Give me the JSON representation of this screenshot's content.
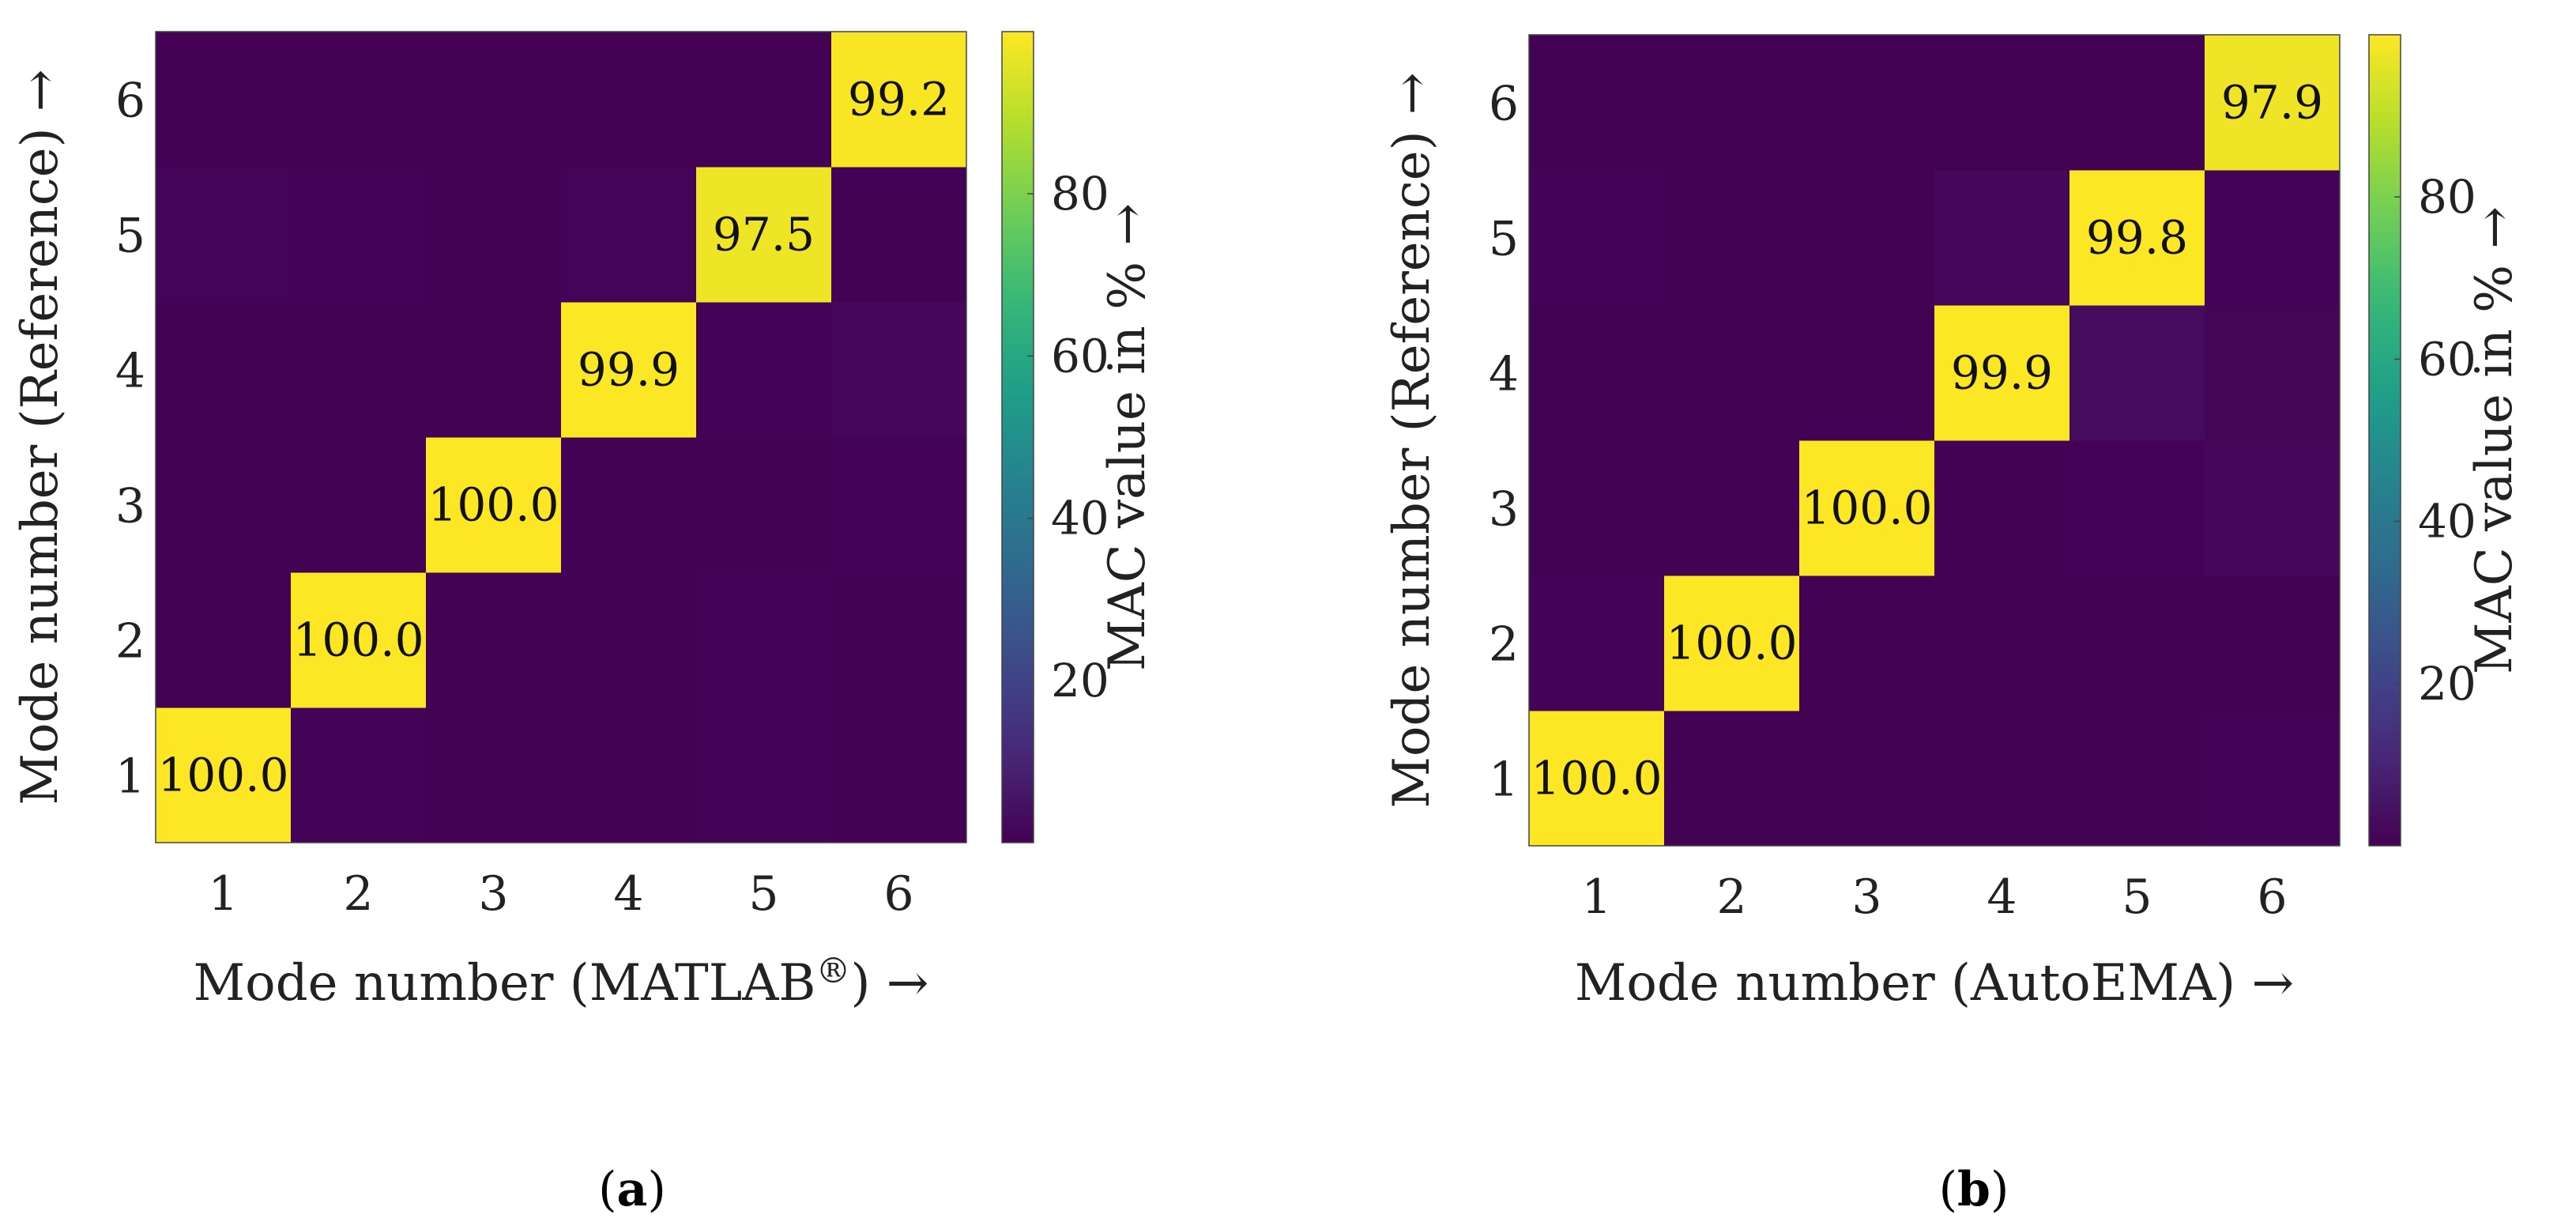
{
  "chart_data": [
    {
      "type": "heatmap",
      "panel_label": "a",
      "x_categories": [
        "1",
        "2",
        "3",
        "4",
        "5",
        "6"
      ],
      "y_categories": [
        "1",
        "2",
        "3",
        "4",
        "5",
        "6"
      ],
      "xlabel_prefix": "Mode number (MATLAB",
      "xlabel_sup": "®",
      "xlabel_suffix": ") →",
      "ylabel": "Mode number (Reference) →",
      "values": [
        [
          100.0,
          0.5,
          0.2,
          0.3,
          0.5,
          0.3
        ],
        [
          0.4,
          100.0,
          0.2,
          0.3,
          0.6,
          0.4
        ],
        [
          0.3,
          0.2,
          100.0,
          0.2,
          0.4,
          0.5
        ],
        [
          0.3,
          0.2,
          0.2,
          99.9,
          0.6,
          1.6
        ],
        [
          0.9,
          0.7,
          0.4,
          0.9,
          97.5,
          0.4
        ],
        [
          0.2,
          0.2,
          0.3,
          0.3,
          0.4,
          99.2
        ]
      ],
      "annotations": [
        "100.0",
        "100.0",
        "100.0",
        "99.9",
        "97.5",
        "99.2"
      ],
      "colorbar": {
        "label": "MAC value in % →",
        "ticks": [
          "20",
          "40",
          "60",
          "80"
        ],
        "range": [
          0,
          100
        ]
      },
      "colormap": "viridis"
    },
    {
      "type": "heatmap",
      "panel_label": "b",
      "x_categories": [
        "1",
        "2",
        "3",
        "4",
        "5",
        "6"
      ],
      "y_categories": [
        "1",
        "2",
        "3",
        "4",
        "5",
        "6"
      ],
      "xlabel": "Mode number (AutoEMA) →",
      "ylabel": "Mode number (Reference) →",
      "values": [
        [
          100.0,
          0.3,
          0.2,
          0.3,
          0.4,
          0.5
        ],
        [
          0.5,
          100.0,
          0.2,
          0.3,
          0.4,
          0.3
        ],
        [
          0.3,
          0.2,
          100.0,
          0.3,
          0.5,
          1.9
        ],
        [
          0.4,
          0.3,
          0.2,
          99.9,
          2.9,
          1.0
        ],
        [
          0.7,
          0.4,
          0.3,
          2.1,
          99.8,
          0.6
        ],
        [
          0.3,
          0.2,
          0.2,
          0.3,
          0.4,
          97.9
        ]
      ],
      "annotations": [
        "100.0",
        "100.0",
        "100.0",
        "99.9",
        "99.8",
        "97.9"
      ],
      "colorbar": {
        "label": "MAC value in % →",
        "ticks": [
          "20",
          "40",
          "60",
          "80"
        ],
        "range": [
          0,
          100
        ]
      },
      "colormap": "viridis"
    }
  ]
}
